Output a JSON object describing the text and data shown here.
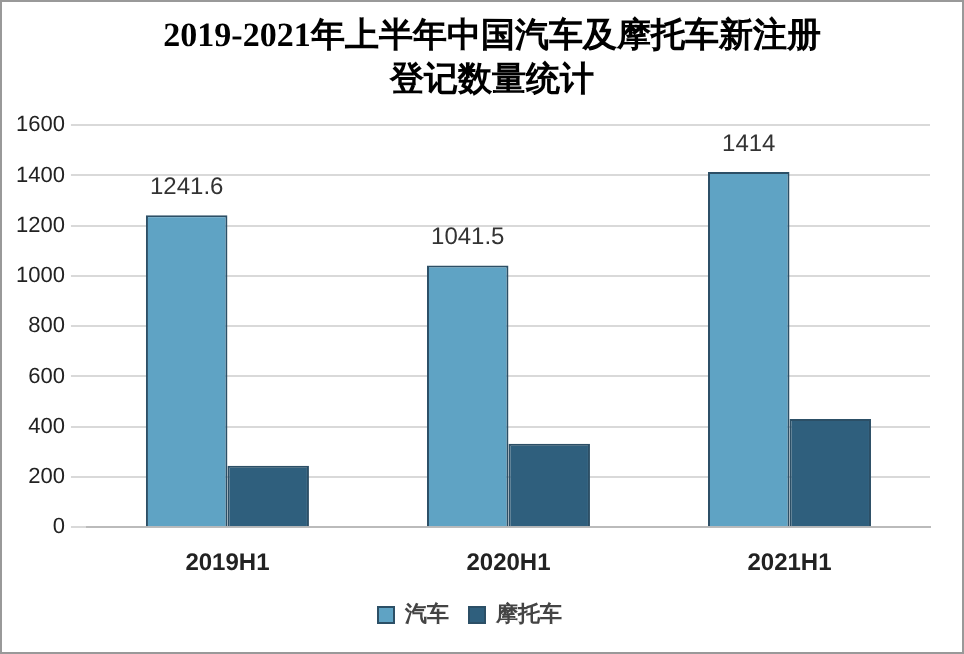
{
  "chart_data": {
    "type": "bar",
    "title": "2019-2021年上半年中国汽车及摩托车新注册登记数量统计",
    "categories": [
      "2019H1",
      "2020H1",
      "2021H1"
    ],
    "series": [
      {
        "name": "汽车",
        "color": "#5fa3c4",
        "values": [
          1241.6,
          1041.5,
          1414
        ],
        "value_labels": [
          "1241.6",
          "1041.5",
          "1414"
        ]
      },
      {
        "name": "摩托车",
        "color": "#2f5f7d",
        "values": [
          245,
          332,
          431
        ]
      }
    ],
    "ylim": [
      0,
      1600
    ],
    "yticks": [
      0,
      200,
      400,
      600,
      800,
      1000,
      1200,
      1400,
      1600
    ],
    "grid": "y",
    "legend": "bottom"
  }
}
